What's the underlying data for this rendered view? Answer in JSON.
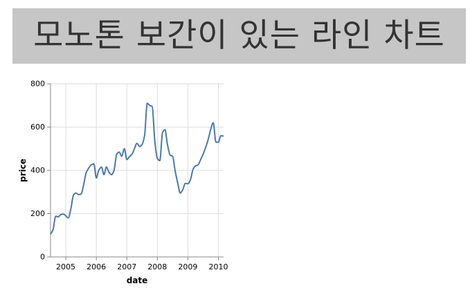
{
  "page": {
    "title": "모노톤 보간이 있는 라인 차트",
    "title_bg": "#c6c6c6",
    "title_color": "#333333"
  },
  "chart_data": {
    "type": "line",
    "interpolation": "monotone",
    "xlabel": "date",
    "ylabel": "price",
    "xlim": [
      2004.5,
      2010.17
    ],
    "ylim": [
      0,
      800
    ],
    "x_ticks": [
      "2005",
      "2006",
      "2007",
      "2008",
      "2009",
      "2010"
    ],
    "y_ticks": [
      "0",
      "200",
      "400",
      "600",
      "800"
    ],
    "grid": true,
    "line_color": "#4c78a8",
    "series": [
      {
        "x": [
          2004.5,
          2004.58,
          2004.67,
          2004.75,
          2004.83,
          2004.92,
          2005.0,
          2005.08,
          2005.17,
          2005.25,
          2005.33,
          2005.42,
          2005.5,
          2005.58,
          2005.67,
          2005.75,
          2005.83,
          2005.92,
          2006.0,
          2006.08,
          2006.17,
          2006.25,
          2006.33,
          2006.42,
          2006.5,
          2006.58,
          2006.67,
          2006.75,
          2006.83,
          2006.92,
          2007.0,
          2007.08,
          2007.17,
          2007.25,
          2007.33,
          2007.42,
          2007.5,
          2007.58,
          2007.67,
          2007.75,
          2007.83,
          2007.92,
          2008.0,
          2008.08,
          2008.17,
          2008.25,
          2008.33,
          2008.42,
          2008.5,
          2008.58,
          2008.67,
          2008.75,
          2008.83,
          2008.92,
          2009.0,
          2009.08,
          2009.17,
          2009.25,
          2009.33,
          2009.42,
          2009.5,
          2009.58,
          2009.67,
          2009.75,
          2009.83,
          2009.92,
          2010.0,
          2010.08,
          2010.17
        ],
        "values": [
          105,
          125,
          188,
          185,
          195,
          198,
          190,
          180,
          225,
          285,
          295,
          288,
          290,
          330,
          390,
          410,
          425,
          430,
          365,
          400,
          415,
          380,
          415,
          390,
          380,
          400,
          475,
          485,
          465,
          500,
          450,
          462,
          475,
          500,
          525,
          510,
          520,
          560,
          710,
          700,
          695,
          530,
          455,
          445,
          575,
          588,
          520,
          470,
          465,
          400,
          340,
          295,
          310,
          340,
          338,
          355,
          405,
          420,
          425,
          450,
          475,
          505,
          545,
          590,
          620,
          530,
          530,
          560,
          558
        ]
      }
    ]
  }
}
